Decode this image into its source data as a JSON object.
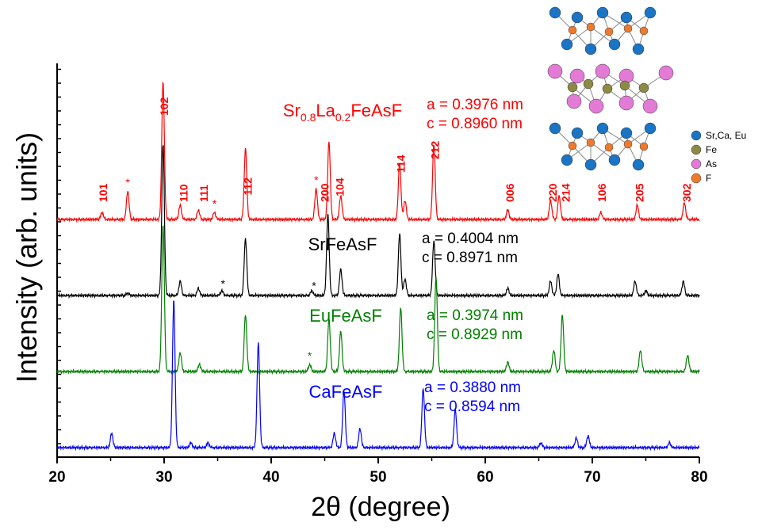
{
  "chart_data": {
    "type": "line",
    "xlabel": "2θ (degree)",
    "ylabel": "Intensity (arb. units)",
    "xlim": [
      20,
      80
    ],
    "xticks": [
      20,
      30,
      40,
      50,
      60,
      70,
      80
    ],
    "grid": false,
    "series": [
      {
        "name": "Sr0.8La0.2FeAsF",
        "name_parts": [
          "Sr",
          "0.8",
          "La",
          "0.2",
          "FeAsF"
        ],
        "color": "#ff0000",
        "baseline": 1.0,
        "scale": 0.22,
        "params": [
          "a = 0.3976 nm",
          "c = 0.8960 nm"
        ],
        "peaks": [
          [
            24.2,
            0.03
          ],
          [
            26.6,
            0.12
          ],
          [
            29.9,
            0.58
          ],
          [
            31.5,
            0.06
          ],
          [
            33.2,
            0.04
          ],
          [
            34.7,
            0.03
          ],
          [
            37.6,
            0.3
          ],
          [
            44.2,
            0.13
          ],
          [
            45.4,
            0.33
          ],
          [
            46.5,
            0.1
          ],
          [
            52.0,
            0.24
          ],
          [
            52.5,
            0.08
          ],
          [
            55.2,
            0.32
          ],
          [
            62.1,
            0.04
          ],
          [
            66.1,
            0.08
          ],
          [
            66.9,
            0.1
          ],
          [
            70.8,
            0.03
          ],
          [
            74.2,
            0.06
          ],
          [
            78.6,
            0.07
          ]
        ],
        "peak_labels": [
          {
            "x": 24.3,
            "text": "101"
          },
          {
            "x": 30.0,
            "text": "102"
          },
          {
            "x": 31.8,
            "text": "110"
          },
          {
            "x": 33.7,
            "text": "111"
          },
          {
            "x": 37.8,
            "text": "112"
          },
          {
            "x": 45.0,
            "text": "200"
          },
          {
            "x": 46.4,
            "text": "104"
          },
          {
            "x": 52.1,
            "text": "114"
          },
          {
            "x": 55.3,
            "text": "212"
          },
          {
            "x": 62.3,
            "text": "006"
          },
          {
            "x": 66.3,
            "text": "220"
          },
          {
            "x": 67.5,
            "text": "214"
          },
          {
            "x": 70.9,
            "text": "106"
          },
          {
            "x": 74.4,
            "text": "205"
          },
          {
            "x": 78.8,
            "text": "302"
          }
        ],
        "impurity_marks": [
          26.6,
          34.7,
          44.2
        ]
      },
      {
        "name": "SrFeAsF",
        "color": "#000000",
        "baseline": 0.68,
        "scale": 0.22,
        "params": [
          "a = 0.4004 nm",
          "c = 0.8971 nm"
        ],
        "peaks": [
          [
            26.6,
            0.01
          ],
          [
            29.9,
            0.64
          ],
          [
            31.5,
            0.06
          ],
          [
            33.2,
            0.03
          ],
          [
            35.4,
            0.02
          ],
          [
            37.6,
            0.24
          ],
          [
            43.8,
            0.02
          ],
          [
            45.3,
            0.34
          ],
          [
            46.5,
            0.11
          ],
          [
            52.0,
            0.26
          ],
          [
            52.5,
            0.07
          ],
          [
            55.2,
            0.23
          ],
          [
            62.1,
            0.03
          ],
          [
            66.1,
            0.06
          ],
          [
            66.8,
            0.09
          ],
          [
            74.0,
            0.06
          ],
          [
            75.0,
            0.02
          ],
          [
            78.5,
            0.06
          ]
        ],
        "impurity_marks": [
          35.5,
          44.0
        ]
      },
      {
        "name": "EuFeAsF",
        "color": "#008000",
        "baseline": 0.36,
        "scale": 0.22,
        "params": [
          "a = 0.3974 nm",
          "c = 0.8929 nm"
        ],
        "peaks": [
          [
            29.9,
            0.62
          ],
          [
            31.5,
            0.08
          ],
          [
            33.3,
            0.03
          ],
          [
            37.6,
            0.24
          ],
          [
            43.6,
            0.03
          ],
          [
            45.4,
            0.22
          ],
          [
            46.5,
            0.17
          ],
          [
            52.1,
            0.27
          ],
          [
            55.4,
            0.4
          ],
          [
            62.1,
            0.04
          ],
          [
            66.4,
            0.09
          ],
          [
            67.2,
            0.24
          ],
          [
            74.5,
            0.09
          ],
          [
            78.9,
            0.07
          ]
        ],
        "impurity_marks": [
          43.6
        ]
      },
      {
        "name": "CaFeAsF",
        "color": "#0000ff",
        "baseline": 0.04,
        "scale": 0.22,
        "params": [
          "a = 0.3880 nm",
          "c = 0.8594 nm"
        ],
        "peaks": [
          [
            25.1,
            0.06
          ],
          [
            30.9,
            0.62
          ],
          [
            32.5,
            0.02
          ],
          [
            34.1,
            0.02
          ],
          [
            38.8,
            0.44
          ],
          [
            45.9,
            0.06
          ],
          [
            46.8,
            0.24
          ],
          [
            48.3,
            0.08
          ],
          [
            54.2,
            0.25
          ],
          [
            57.2,
            0.16
          ],
          [
            65.2,
            0.02
          ],
          [
            68.5,
            0.04
          ],
          [
            69.6,
            0.05
          ],
          [
            77.2,
            0.02
          ]
        ],
        "impurity_marks": []
      }
    ],
    "annotation_mark": "*"
  },
  "inset": {
    "legend": [
      {
        "label": "Sr,Ca, Eu",
        "color": "#1b74c4"
      },
      {
        "label": "Fe",
        "color": "#8c8a45"
      },
      {
        "label": "As",
        "color": "#e27ad6"
      },
      {
        "label": "F",
        "color": "#ee7a2e"
      }
    ]
  }
}
